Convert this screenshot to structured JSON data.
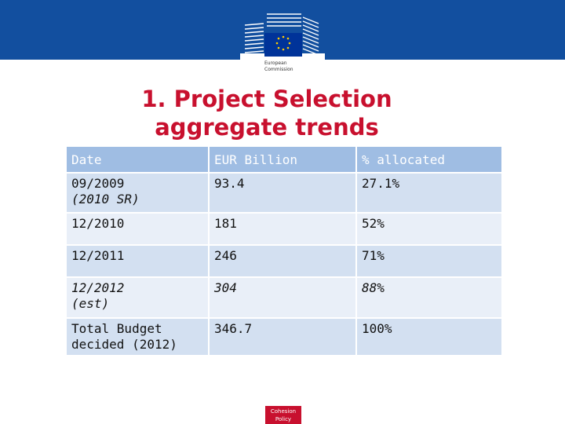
{
  "header": {
    "logo_text": [
      "European",
      "Commission"
    ]
  },
  "title": [
    "1. Project Selection",
    "aggregate trends"
  ],
  "table": {
    "header": [
      "Date",
      "EUR Billion",
      "% allocated"
    ],
    "rows": [
      [
        [
          "09/2009",
          "(2010 SR)"
        ],
        [
          "93.4"
        ],
        [
          "27.1%"
        ]
      ],
      [
        [
          "12/2010"
        ],
        [
          "181"
        ],
        [
          "52%"
        ]
      ],
      [
        [
          "12/2011"
        ],
        [
          "246"
        ],
        [
          "71%"
        ]
      ],
      [
        [
          "12/2012",
          "(est)"
        ],
        [
          "304"
        ],
        [
          "88%"
        ]
      ],
      [
        [
          "Total Budget",
          "decided (2012)"
        ],
        [
          "346.7"
        ],
        [
          "100%"
        ]
      ]
    ]
  },
  "footer": {
    "badge": [
      "Cohesion",
      "Policy"
    ]
  }
}
